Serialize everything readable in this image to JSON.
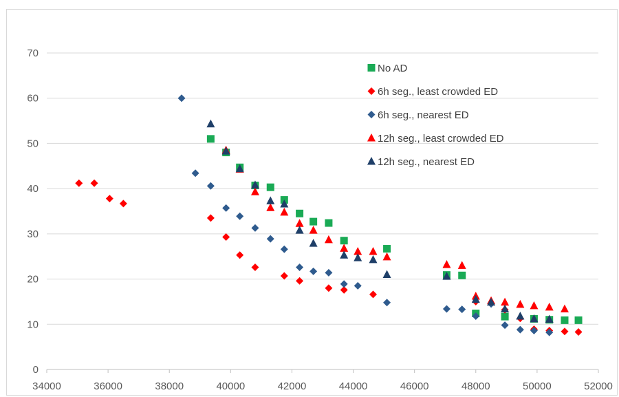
{
  "chart_data": {
    "type": "scatter",
    "title": "",
    "xlabel": "",
    "ylabel": "",
    "xlim": [
      34000,
      52000
    ],
    "ylim": [
      0,
      70
    ],
    "x_ticks": [
      34000,
      36000,
      38000,
      40000,
      42000,
      44000,
      46000,
      48000,
      50000,
      52000
    ],
    "y_ticks": [
      0,
      10,
      20,
      30,
      40,
      50,
      60,
      70
    ],
    "grid": "horizontal",
    "legend_position": "inside-top-right",
    "series": [
      {
        "name": "No AD",
        "marker": "square",
        "color": "#1aaa55",
        "points": [
          [
            39350,
            51
          ],
          [
            39850,
            48
          ],
          [
            40300,
            44.7
          ],
          [
            40800,
            40.7
          ],
          [
            41300,
            40.3
          ],
          [
            41750,
            37.5
          ],
          [
            42250,
            34.5
          ],
          [
            42700,
            32.7
          ],
          [
            43200,
            32.4
          ],
          [
            43700,
            28.5
          ],
          [
            45100,
            26.7
          ],
          [
            47050,
            20.9
          ],
          [
            47550,
            20.8
          ],
          [
            48000,
            12.4
          ],
          [
            48950,
            11.7
          ],
          [
            49900,
            11.2
          ],
          [
            50400,
            11.0
          ],
          [
            50900,
            10.9
          ],
          [
            51350,
            10.9
          ]
        ]
      },
      {
        "name": "6h seg., least crowded ED",
        "marker": "diamond",
        "color": "#ff0000",
        "points": [
          [
            35050,
            41.2
          ],
          [
            35550,
            41.2
          ],
          [
            36050,
            37.8
          ],
          [
            36500,
            36.7
          ],
          [
            39350,
            33.5
          ],
          [
            39850,
            29.3
          ],
          [
            40300,
            25.3
          ],
          [
            40800,
            22.6
          ],
          [
            41750,
            20.7
          ],
          [
            42250,
            19.6
          ],
          [
            43200,
            18
          ],
          [
            43700,
            17.6
          ],
          [
            44650,
            16.6
          ],
          [
            48000,
            15
          ],
          [
            48950,
            13.2
          ],
          [
            49450,
            11.3
          ],
          [
            49900,
            8.9
          ],
          [
            50400,
            8.6
          ],
          [
            50900,
            8.4
          ],
          [
            51350,
            8.3
          ]
        ]
      },
      {
        "name": "6h seg., nearest ED",
        "marker": "diamond",
        "color": "#2f5b8e",
        "points": [
          [
            38400,
            60
          ],
          [
            38850,
            43.4
          ],
          [
            39350,
            40.6
          ],
          [
            39850,
            35.7
          ],
          [
            40300,
            33.9
          ],
          [
            40800,
            31.3
          ],
          [
            41300,
            28.9
          ],
          [
            41750,
            26.6
          ],
          [
            42250,
            22.6
          ],
          [
            42700,
            21.7
          ],
          [
            43200,
            21.4
          ],
          [
            43700,
            18.9
          ],
          [
            44150,
            18.5
          ],
          [
            45100,
            14.8
          ],
          [
            47050,
            13.4
          ],
          [
            47550,
            13.3
          ],
          [
            48000,
            11.8
          ],
          [
            48500,
            14.5
          ],
          [
            48950,
            9.8
          ],
          [
            49450,
            8.8
          ],
          [
            49900,
            8.6
          ],
          [
            50400,
            8.2
          ]
        ]
      },
      {
        "name": "12h seg., least crowded ED",
        "marker": "triangle",
        "color": "#ff0000",
        "points": [
          [
            39850,
            48.5
          ],
          [
            40300,
            44.3
          ],
          [
            40800,
            39.3
          ],
          [
            41300,
            35.8
          ],
          [
            41750,
            34.8
          ],
          [
            42250,
            32.3
          ],
          [
            42700,
            30.8
          ],
          [
            43200,
            28.7
          ],
          [
            43700,
            26.8
          ],
          [
            44150,
            26.1
          ],
          [
            44650,
            26.1
          ],
          [
            45100,
            24.9
          ],
          [
            47050,
            23.2
          ],
          [
            47550,
            23
          ],
          [
            48000,
            16.2
          ],
          [
            48500,
            15.2
          ],
          [
            48950,
            14.9
          ],
          [
            49450,
            14.4
          ],
          [
            49900,
            14.1
          ],
          [
            50400,
            13.8
          ],
          [
            50900,
            13.4
          ]
        ]
      },
      {
        "name": "12h seg., nearest ED",
        "marker": "triangle",
        "color": "#1f3f68",
        "points": [
          [
            39350,
            54.3
          ],
          [
            39850,
            48.3
          ],
          [
            40300,
            44.4
          ],
          [
            40800,
            40.8
          ],
          [
            41300,
            37.3
          ],
          [
            41750,
            36.6
          ],
          [
            42250,
            30.8
          ],
          [
            42700,
            27.9
          ],
          [
            43700,
            25.3
          ],
          [
            44150,
            24.7
          ],
          [
            44650,
            24.3
          ],
          [
            45100,
            21
          ],
          [
            47050,
            20.6
          ],
          [
            48000,
            15.5
          ],
          [
            48500,
            14.9
          ],
          [
            48950,
            13.4
          ],
          [
            49450,
            11.8
          ],
          [
            49900,
            11.2
          ],
          [
            50400,
            11.1
          ]
        ]
      }
    ]
  }
}
